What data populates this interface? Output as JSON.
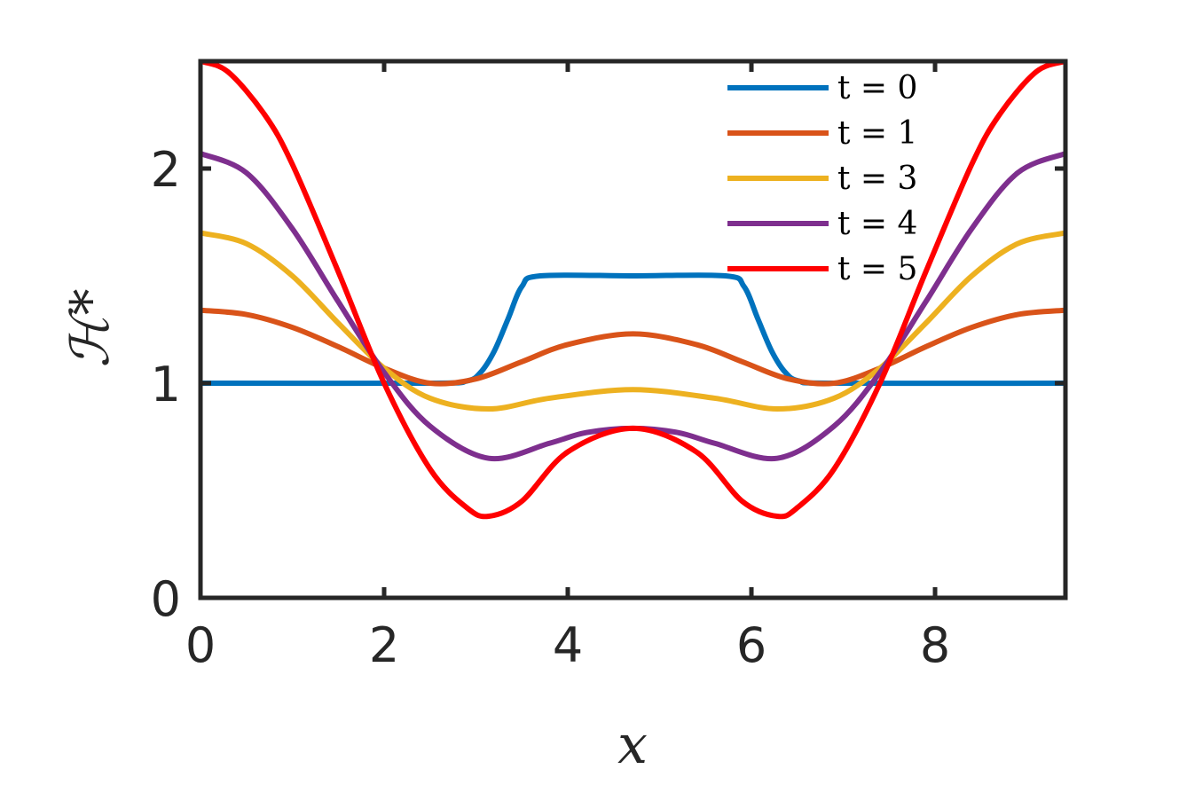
{
  "chart_data": {
    "type": "line",
    "xlabel": "x",
    "ylabel": "ℋ*",
    "xlim": [
      0,
      9.42
    ],
    "ylim": [
      0,
      2.5
    ],
    "xticks": [
      0,
      2,
      4,
      6,
      8
    ],
    "yticks": [
      0,
      1,
      2
    ],
    "grid": false,
    "legend_position": "top-right",
    "series": [
      {
        "name": "t = 0",
        "color": "#0072BD",
        "x": [
          0,
          2.5,
          2.9,
          3.05,
          3.2,
          3.35,
          3.5,
          3.7,
          4.71,
          5.72,
          5.92,
          6.07,
          6.22,
          6.37,
          6.52,
          6.9,
          9.42
        ],
        "y": [
          1.0,
          1.0,
          1.01,
          1.05,
          1.15,
          1.3,
          1.45,
          1.5,
          1.5,
          1.5,
          1.45,
          1.3,
          1.15,
          1.05,
          1.01,
          1.0,
          1.0
        ]
      },
      {
        "name": "t = 1",
        "color": "#D95319",
        "x": [
          0,
          0.5,
          1.0,
          1.5,
          2.0,
          2.5,
          3.0,
          3.5,
          4.0,
          4.71,
          5.4,
          5.9,
          6.4,
          6.9,
          7.4,
          7.9,
          8.4,
          8.9,
          9.42
        ],
        "y": [
          1.34,
          1.32,
          1.26,
          1.17,
          1.07,
          1.0,
          1.02,
          1.1,
          1.18,
          1.23,
          1.18,
          1.1,
          1.02,
          1.0,
          1.07,
          1.17,
          1.26,
          1.32,
          1.34
        ]
      },
      {
        "name": "t = 3",
        "color": "#EDB120",
        "x": [
          0,
          0.5,
          1.0,
          1.5,
          2.0,
          2.5,
          3.14,
          3.8,
          4.71,
          5.6,
          6.28,
          6.9,
          7.4,
          7.9,
          8.4,
          8.9,
          9.42
        ],
        "y": [
          1.7,
          1.65,
          1.5,
          1.28,
          1.07,
          0.93,
          0.88,
          0.93,
          0.97,
          0.93,
          0.88,
          0.93,
          1.07,
          1.28,
          1.5,
          1.65,
          1.7
        ]
      },
      {
        "name": "t = 4",
        "color": "#7E2F8E",
        "x": [
          0,
          0.5,
          1.0,
          1.5,
          2.0,
          2.5,
          3.14,
          3.8,
          4.2,
          4.71,
          5.2,
          5.6,
          6.28,
          6.9,
          7.4,
          7.9,
          8.4,
          8.9,
          9.42
        ],
        "y": [
          2.07,
          1.98,
          1.72,
          1.38,
          1.05,
          0.8,
          0.65,
          0.72,
          0.77,
          0.79,
          0.77,
          0.72,
          0.65,
          0.8,
          1.05,
          1.38,
          1.72,
          1.98,
          2.07
        ]
      },
      {
        "name": "t = 5",
        "color": "#FF0000",
        "x": [
          0,
          0.3,
          0.7,
          1.0,
          1.5,
          2.0,
          2.5,
          2.9,
          3.14,
          3.5,
          4.0,
          4.71,
          5.4,
          5.9,
          6.28,
          6.5,
          6.9,
          7.4,
          7.9,
          8.4,
          8.7,
          9.1,
          9.42
        ],
        "y": [
          2.5,
          2.45,
          2.25,
          2.02,
          1.52,
          1.0,
          0.6,
          0.42,
          0.38,
          0.45,
          0.68,
          0.79,
          0.68,
          0.45,
          0.38,
          0.42,
          0.6,
          1.0,
          1.52,
          2.02,
          2.25,
          2.45,
          2.5
        ]
      }
    ]
  }
}
